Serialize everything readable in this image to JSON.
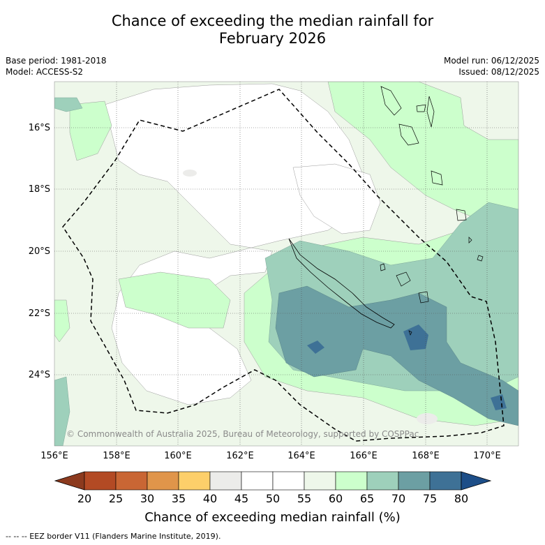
{
  "title_line1": "Chance of exceeding the median rainfall for",
  "title_line2": "February 2026",
  "meta": {
    "base_period": "Base period: 1981-2018",
    "model": "Model: ACCESS-S2",
    "model_run": "Model run: 06/12/2025",
    "issued": "Issued: 08/12/2025"
  },
  "lat_labels": [
    "16°S",
    "18°S",
    "20°S",
    "22°S",
    "24°S"
  ],
  "lon_labels": [
    "156°E",
    "158°E",
    "160°E",
    "162°E",
    "164°E",
    "166°E",
    "168°E",
    "170°E"
  ],
  "copyright": "© Commonwealth of Australia 2025, Bureau of Meteorology, supported by COSPPac",
  "colorbar": {
    "title": "Chance of exceeding median rainfall (%)",
    "ticks": [
      "20",
      "25",
      "30",
      "35",
      "40",
      "45",
      "50",
      "55",
      "60",
      "65",
      "70",
      "75",
      "80"
    ],
    "colors": [
      "#8c3a1e",
      "#b34a24",
      "#c96634",
      "#e0954a",
      "#fdcf6a",
      "#ececea",
      "#ffffff",
      "#ffffff",
      "#eef7ea",
      "#ccffcc",
      "#9ed0bb",
      "#6c9fa3",
      "#3e7196",
      "#1d4e88"
    ]
  },
  "footnote": "--  --  -- EEZ border V11 (Flanders Marine Institute, 2019)."
}
